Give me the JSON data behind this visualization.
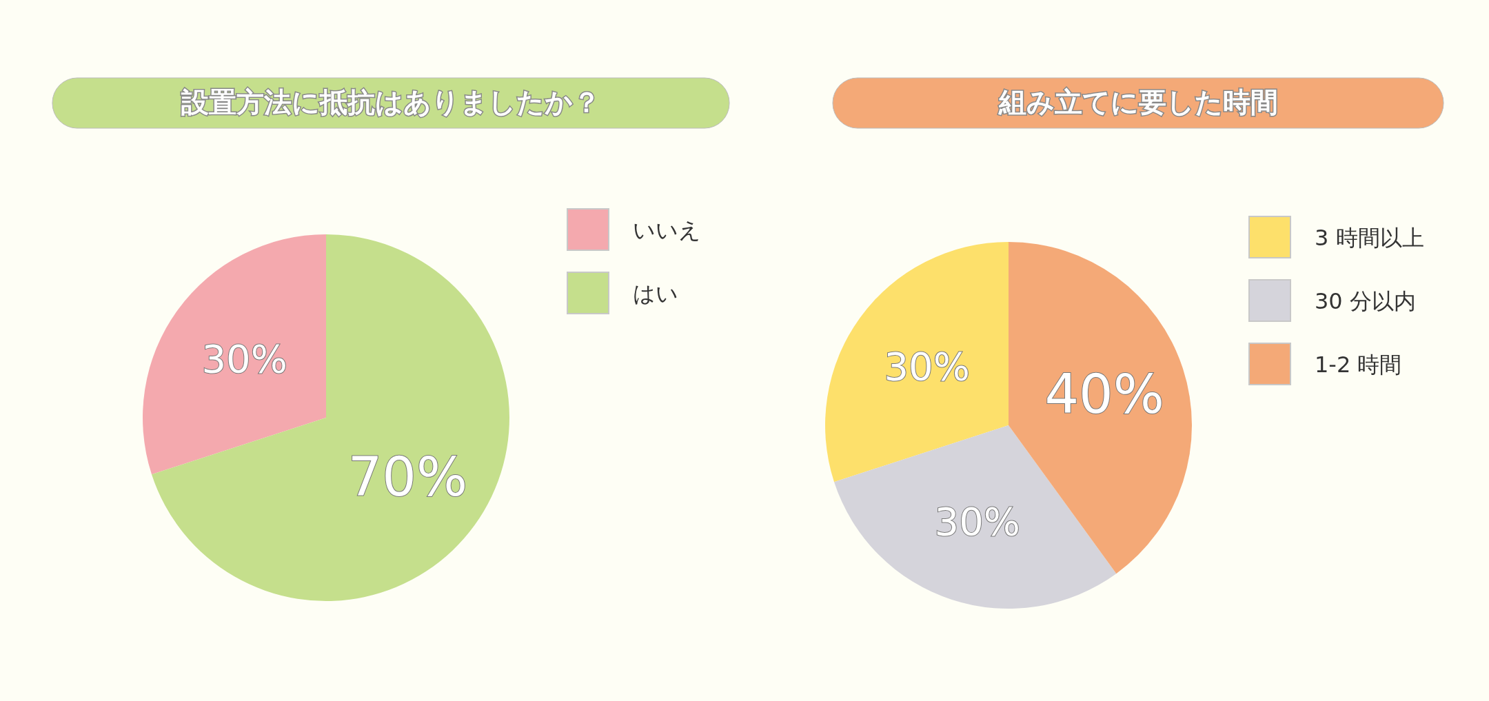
{
  "chart_data": [
    {
      "type": "pie",
      "title": "設置方法に抵抗はありましたか？",
      "categories": [
        "いいえ",
        "はい"
      ],
      "values": [
        30,
        70
      ],
      "colors": [
        "#f4a9ae",
        "#c5df8c"
      ],
      "value_labels": [
        "30%",
        "70%"
      ],
      "legend": "right"
    },
    {
      "type": "pie",
      "title": "組み立てに要した時間",
      "categories": [
        "3 時間以上",
        "30 分以内",
        "1-2 時間"
      ],
      "values": [
        30,
        30,
        40
      ],
      "colors": [
        "#fde06b",
        "#d5d4db",
        "#f4a977"
      ],
      "value_labels": [
        "30%",
        "30%",
        "40%"
      ],
      "legend": "right"
    }
  ]
}
